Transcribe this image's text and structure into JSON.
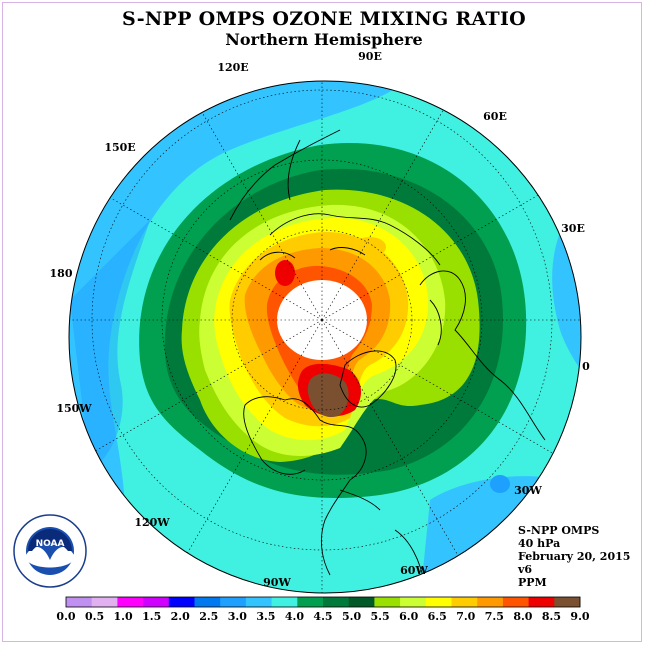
{
  "title": "S-NPP OMPS OZONE MIXING RATIO",
  "subtitle": "Northern Hemisphere",
  "longitude_labels": [
    "90E",
    "60E",
    "30E",
    "0",
    "30W",
    "60W",
    "90W",
    "120W",
    "150W",
    "180",
    "150E",
    "120E"
  ],
  "info": {
    "instrument": "S-NPP OMPS",
    "pressure": "40 hPa",
    "date": "February 20, 2015",
    "version": "v6",
    "units": "PPM"
  },
  "logo_text": "NOAA",
  "colorbar": {
    "colors": [
      "#c090f0",
      "#e0b0f0",
      "#ff00ff",
      "#d000ff",
      "#0000ff",
      "#0078f0",
      "#1ea0ff",
      "#33c4ff",
      "#40f0e0",
      "#00a050",
      "#007a3a",
      "#005a28",
      "#99e000",
      "#ccff33",
      "#ffff00",
      "#ffcc00",
      "#ff9900",
      "#ff5500",
      "#ee0000",
      "#7a5030"
    ],
    "ticks": [
      "0.0",
      "0.5",
      "1.0",
      "1.5",
      "2.0",
      "2.5",
      "3.0",
      "3.5",
      "4.0",
      "4.5",
      "5.0",
      "5.5",
      "6.0",
      "6.5",
      "7.0",
      "7.5",
      "8.0",
      "8.5",
      "9.0"
    ]
  }
}
